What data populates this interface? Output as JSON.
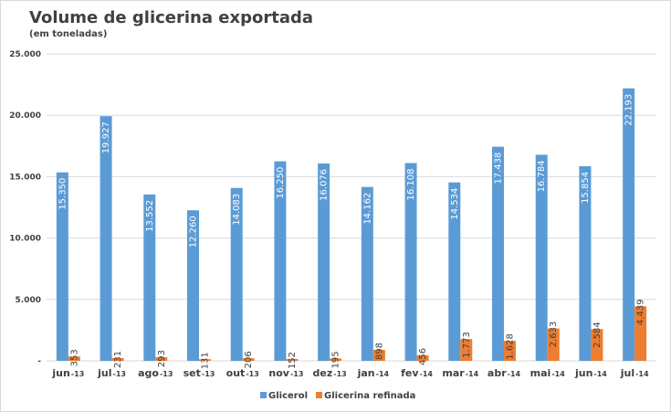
{
  "chart_data": {
    "type": "bar",
    "title": "Volume de glicerina exportada",
    "subtitle": "(em toneladas)",
    "categories": [
      {
        "month": "jun",
        "year": "13"
      },
      {
        "month": "jul",
        "year": "13"
      },
      {
        "month": "ago",
        "year": "13"
      },
      {
        "month": "set",
        "year": "13"
      },
      {
        "month": "out",
        "year": "13"
      },
      {
        "month": "nov",
        "year": "13"
      },
      {
        "month": "dez",
        "year": "13"
      },
      {
        "month": "jan",
        "year": "14"
      },
      {
        "month": "fev",
        "year": "14"
      },
      {
        "month": "mar",
        "year": "14"
      },
      {
        "month": "abr",
        "year": "14"
      },
      {
        "month": "mai",
        "year": "14"
      },
      {
        "month": "jun",
        "year": "14"
      },
      {
        "month": "jul",
        "year": "14"
      }
    ],
    "series": [
      {
        "name": "Glicerol",
        "color": "#5b9bd5",
        "values": [
          15350,
          19927,
          13552,
          12260,
          14083,
          16250,
          16076,
          14162,
          16108,
          14534,
          17438,
          16784,
          15854,
          22193
        ],
        "labels": [
          "15.350",
          "19.927",
          "13.552",
          "12.260",
          "14.083",
          "16.250",
          "16.076",
          "14.162",
          "16.108",
          "14.534",
          "17.438",
          "16.784",
          "15.854",
          "22.193"
        ]
      },
      {
        "name": "Glicerina refinada",
        "color": "#ed7d31",
        "values": [
          353,
          231,
          293,
          131,
          206,
          152,
          195,
          898,
          456,
          1773,
          1628,
          2633,
          2584,
          4439
        ],
        "labels": [
          "353",
          "231",
          "293",
          "131",
          "206",
          "152",
          "195",
          "898",
          "456",
          "1.773",
          "1.628",
          "2.633",
          "2.584",
          "4.439"
        ]
      }
    ],
    "ylim": [
      0,
      25000
    ],
    "yticks": [
      {
        "value": 0,
        "label": "-"
      },
      {
        "value": 5000,
        "label": "5.000"
      },
      {
        "value": 10000,
        "label": "10.000"
      },
      {
        "value": 15000,
        "label": "15.000"
      },
      {
        "value": 20000,
        "label": "20.000"
      },
      {
        "value": 25000,
        "label": "25.000"
      }
    ],
    "grid": true,
    "legend_position": "bottom"
  }
}
